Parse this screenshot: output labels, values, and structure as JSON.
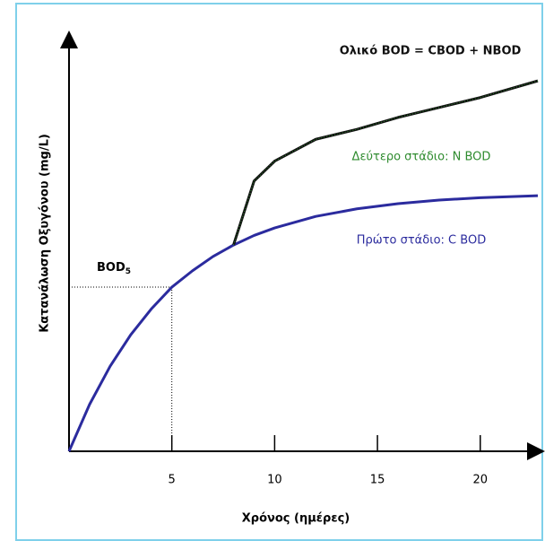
{
  "chart_data": {
    "type": "line",
    "x_label": "Χρόνος (ημέρες)",
    "y_label": "Κατανάλωση Οξυγόνου (mg/L)",
    "x": [
      0,
      1,
      2,
      3,
      4,
      5,
      6,
      7,
      8,
      9,
      10,
      12,
      14,
      16,
      18,
      20,
      22.8
    ],
    "series": [
      {
        "name": "Πρώτο στάδιο: C BOD",
        "color": "#2b2b9e",
        "values": [
          0,
          11.8,
          21.4,
          29.3,
          35.8,
          41.3,
          45.4,
          49.0,
          51.9,
          54.3,
          56.2,
          59.1,
          61.0,
          62.3,
          63.2,
          63.8,
          64.3
        ]
      },
      {
        "name": "Ολικό BOD = CBOD + NBOD",
        "color": "#111111",
        "values": [
          null,
          null,
          null,
          null,
          null,
          null,
          null,
          null,
          51.9,
          68.0,
          73.0,
          78.5,
          81.0,
          84.0,
          86.5,
          89.0,
          93.2
        ]
      }
    ],
    "second_stage_label": {
      "text": "Δεύτερο στάδιο: N BOD",
      "color": "#2e8b2e"
    },
    "bod5_marker": {
      "x": 5,
      "y": 41.3,
      "text": "BOD",
      "subscript": "5"
    },
    "xlim": [
      0,
      22.8
    ],
    "xticks": [
      5,
      10,
      15,
      20
    ],
    "ylim": [
      0,
      100
    ]
  }
}
